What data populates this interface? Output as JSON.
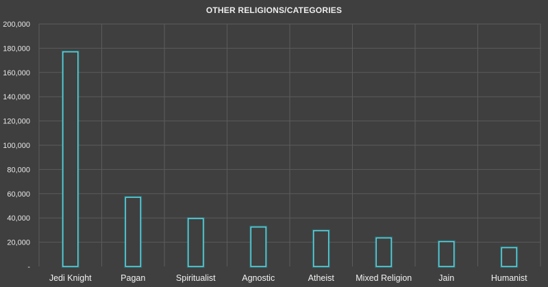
{
  "chart_data": {
    "type": "bar",
    "title": "OTHER RELIGIONS/CATEGORIES",
    "xlabel": "",
    "ylabel": "",
    "categories": [
      "Jedi Knight",
      "Pagan",
      "Spiritualist",
      "Agnostic",
      "Atheist",
      "Mixed Religion",
      "Jain",
      "Humanist"
    ],
    "values": [
      177000,
      57000,
      39500,
      32500,
      29500,
      23500,
      20500,
      15500
    ],
    "ylim": [
      0,
      200000
    ],
    "y_ticks": [
      "-",
      "20,000",
      "40,000",
      "60,000",
      "80,000",
      "100,000",
      "120,000",
      "140,000",
      "160,000",
      "180,000",
      "200,000"
    ],
    "grid": true,
    "legend": "none",
    "colors": {
      "background": "#3f3f3f",
      "bar_outline": "#55d3dd",
      "grid": "#5c5c5c",
      "text": "#e8e8e8"
    }
  }
}
